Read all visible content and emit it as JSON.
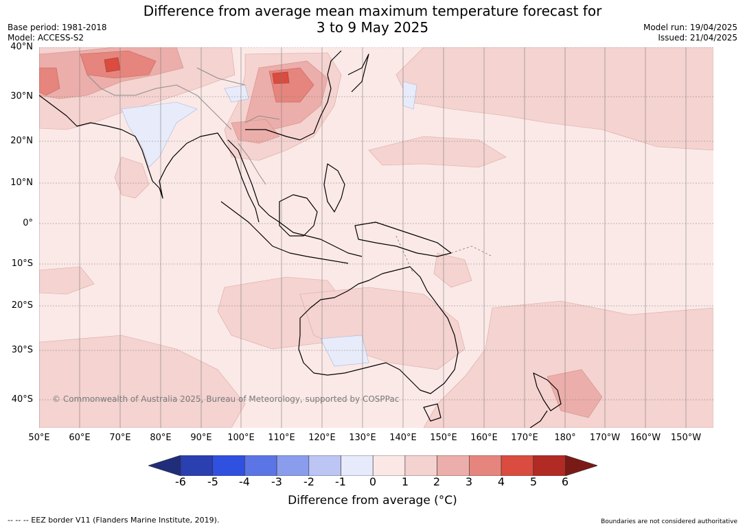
{
  "title_line1": "Difference from average mean maximum temperature forecast for",
  "title_line2": "3 to 9 May 2025",
  "base_period": "Base period: 1981-2018",
  "model": "Model: ACCESS-S2",
  "model_run": "Model run: 19/04/2025",
  "issued": "Issued: 21/04/2025",
  "copyright": "© Commonwealth of Australia 2025, Bureau of Meteorology, supported by COSPPac",
  "lat_labels": [
    "40°N",
    "30°N",
    "20°N",
    "10°N",
    "0°",
    "10°S",
    "20°S",
    "30°S",
    "40°S"
  ],
  "lon_labels": [
    "50°E",
    "60°E",
    "70°E",
    "80°E",
    "90°E",
    "100°E",
    "110°E",
    "120°E",
    "130°E",
    "140°E",
    "150°E",
    "160°E",
    "170°E",
    "180°",
    "170°W",
    "160°W",
    "150°W"
  ],
  "colorbar": {
    "ticks": [
      "-6",
      "-5",
      "-4",
      "-3",
      "-2",
      "-1",
      "0",
      "1",
      "2",
      "3",
      "4",
      "5",
      "6"
    ],
    "label": "Difference from average (°C)",
    "colors": [
      "#1f2d7a",
      "#2a3fb0",
      "#3050e0",
      "#5c75e6",
      "#8a9ded",
      "#bcc5f4",
      "#e6eafb",
      "#fbe8e6",
      "#f4d2cf",
      "#ecaeaa",
      "#e6857d",
      "#d94c3f",
      "#b12a23",
      "#7a1a16"
    ]
  },
  "footer_left": "--  --  -- EEZ border V11 (Flanders Marine Institute, 2019).",
  "footer_right": "Boundaries are not considered authoritative",
  "colors": {
    "base_anomaly": "#fbe9e7",
    "warm_1_2": "#f4d3d0",
    "warm_2_3": "#ecaeaa",
    "warm_3_4": "#e6857d",
    "warm_4_5": "#d94c3f",
    "cool_0_1": "#e8ecfa"
  }
}
